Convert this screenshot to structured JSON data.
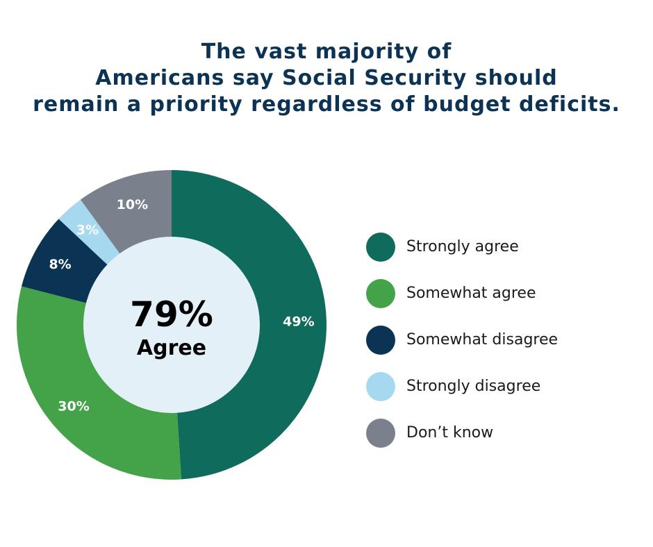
{
  "title_lines": [
    "The vast majority of",
    "Americans say Social Security should",
    "remain a priority regardless of budget deficits."
  ],
  "center": {
    "value": "79%",
    "label": "Agree"
  },
  "colors": {
    "strongly_agree": "#0f6b5c",
    "somewhat_agree": "#44a348",
    "somewhat_disagree": "#0b3354",
    "strongly_disagree": "#a6d9ef",
    "dont_know": "#7b818c",
    "center_fill": "#e3f0f8"
  },
  "chart_data": {
    "type": "pie",
    "title": "The vast majority of Americans say Social Security should remain a priority regardless of budget deficits.",
    "categories": [
      "Strongly agree",
      "Somewhat agree",
      "Somewhat disagree",
      "Strongly disagree",
      "Don’t know"
    ],
    "values": [
      49,
      30,
      8,
      3,
      10
    ],
    "labels": [
      "49%",
      "30%",
      "8%",
      "3%",
      "10%"
    ],
    "legend_position": "right",
    "center_text": "79% Agree",
    "donut": true
  }
}
